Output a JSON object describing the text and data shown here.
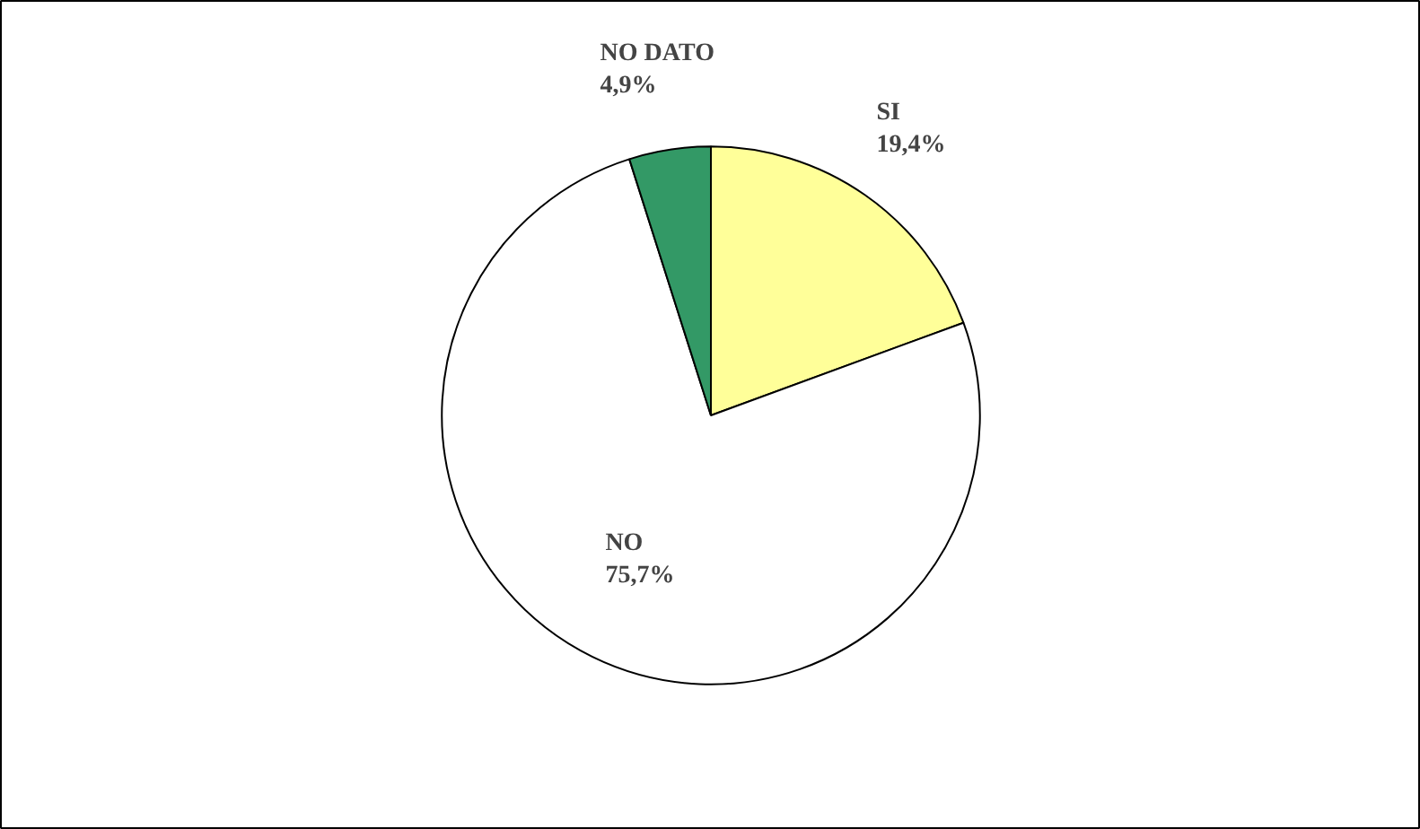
{
  "chart_data": {
    "type": "pie",
    "categories": [
      "SI",
      "NO",
      "NO DATO"
    ],
    "values": [
      19.4,
      75.7,
      4.9
    ],
    "value_labels": [
      "19,4%",
      "75,7%",
      "4,9%"
    ],
    "colors": [
      "#ffff99",
      "#ffffff",
      "#339966"
    ]
  }
}
